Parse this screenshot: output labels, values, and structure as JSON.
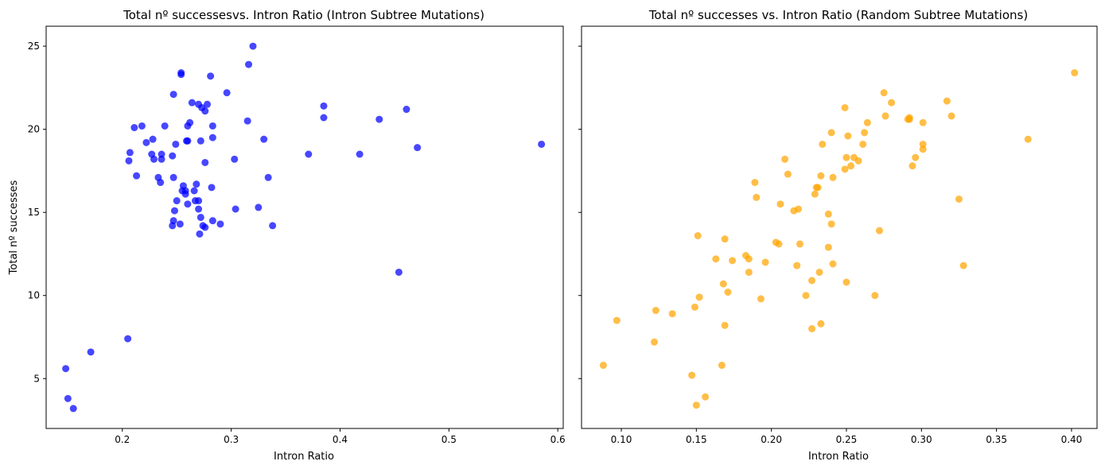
{
  "chart_data": [
    {
      "type": "scatter",
      "title": "Total nº successesvs. Intron Ratio (Intron Subtree Mutations)",
      "xlabel": "Intron Ratio",
      "ylabel": "Total nº successes",
      "xlim": [
        0.13,
        0.605
      ],
      "ylim": [
        2.0,
        26.2
      ],
      "xticks": [
        0.2,
        0.3,
        0.4,
        0.5,
        0.6
      ],
      "xtick_labels": [
        "0.2",
        "0.3",
        "0.4",
        "0.5",
        "0.6"
      ],
      "yticks": [
        5,
        10,
        15,
        20,
        25
      ],
      "ytick_labels": [
        "5",
        "10",
        "15",
        "20",
        "25"
      ],
      "grid": false,
      "color": "#0000ff",
      "points": [
        [
          0.148,
          5.6
        ],
        [
          0.15,
          3.8
        ],
        [
          0.155,
          3.2
        ],
        [
          0.171,
          6.6
        ],
        [
          0.205,
          7.4
        ],
        [
          0.206,
          18.1
        ],
        [
          0.207,
          18.6
        ],
        [
          0.211,
          20.1
        ],
        [
          0.213,
          17.2
        ],
        [
          0.218,
          20.2
        ],
        [
          0.222,
          19.2
        ],
        [
          0.227,
          18.5
        ],
        [
          0.228,
          19.4
        ],
        [
          0.229,
          18.2
        ],
        [
          0.233,
          17.1
        ],
        [
          0.235,
          16.8
        ],
        [
          0.236,
          18.2
        ],
        [
          0.236,
          18.5
        ],
        [
          0.239,
          20.2
        ],
        [
          0.246,
          14.2
        ],
        [
          0.246,
          18.4
        ],
        [
          0.247,
          22.1
        ],
        [
          0.247,
          17.1
        ],
        [
          0.247,
          14.5
        ],
        [
          0.248,
          15.1
        ],
        [
          0.249,
          19.1
        ],
        [
          0.25,
          15.7
        ],
        [
          0.253,
          14.3
        ],
        [
          0.254,
          23.3
        ],
        [
          0.254,
          23.4
        ],
        [
          0.255,
          16.3
        ],
        [
          0.256,
          16.6
        ],
        [
          0.258,
          16.3
        ],
        [
          0.258,
          16.1
        ],
        [
          0.259,
          19.3
        ],
        [
          0.26,
          19.3
        ],
        [
          0.26,
          15.5
        ],
        [
          0.26,
          20.2
        ],
        [
          0.262,
          20.4
        ],
        [
          0.264,
          21.6
        ],
        [
          0.266,
          16.3
        ],
        [
          0.267,
          15.7
        ],
        [
          0.268,
          16.7
        ],
        [
          0.27,
          15.7
        ],
        [
          0.27,
          15.2
        ],
        [
          0.27,
          21.5
        ],
        [
          0.271,
          13.7
        ],
        [
          0.272,
          14.7
        ],
        [
          0.272,
          19.3
        ],
        [
          0.273,
          21.3
        ],
        [
          0.274,
          14.2
        ],
        [
          0.276,
          14.1
        ],
        [
          0.276,
          21.1
        ],
        [
          0.276,
          18.0
        ],
        [
          0.278,
          21.5
        ],
        [
          0.281,
          23.2
        ],
        [
          0.282,
          16.5
        ],
        [
          0.283,
          14.5
        ],
        [
          0.283,
          20.2
        ],
        [
          0.283,
          19.5
        ],
        [
          0.29,
          14.3
        ],
        [
          0.296,
          22.2
        ],
        [
          0.303,
          18.2
        ],
        [
          0.304,
          15.2
        ],
        [
          0.315,
          20.5
        ],
        [
          0.316,
          23.9
        ],
        [
          0.32,
          25.0
        ],
        [
          0.325,
          15.3
        ],
        [
          0.33,
          19.4
        ],
        [
          0.334,
          17.1
        ],
        [
          0.338,
          14.2
        ],
        [
          0.371,
          18.5
        ],
        [
          0.385,
          21.4
        ],
        [
          0.385,
          20.7
        ],
        [
          0.418,
          18.5
        ],
        [
          0.436,
          20.6
        ],
        [
          0.454,
          11.4
        ],
        [
          0.461,
          21.2
        ],
        [
          0.471,
          18.9
        ],
        [
          0.585,
          19.1
        ]
      ]
    },
    {
      "type": "scatter",
      "title": "Total nº successes vs. Intron Ratio (Random Subtree Mutations)",
      "xlabel": "Intron Ratio",
      "ylabel": "",
      "xlim": [
        0.0735,
        0.417
      ],
      "ylim": [
        2.0,
        26.2
      ],
      "xticks": [
        0.1,
        0.15,
        0.2,
        0.25,
        0.3,
        0.35,
        0.4
      ],
      "xtick_labels": [
        "0.10",
        "0.15",
        "0.20",
        "0.25",
        "0.30",
        "0.35",
        "0.40"
      ],
      "yticks": [
        5,
        10,
        15,
        20,
        25
      ],
      "ytick_labels": [
        "",
        "",
        "",
        "",
        ""
      ],
      "grid": false,
      "color": "#ffa500",
      "points": [
        [
          0.088,
          5.8
        ],
        [
          0.097,
          8.5
        ],
        [
          0.122,
          7.2
        ],
        [
          0.123,
          9.1
        ],
        [
          0.134,
          8.9
        ],
        [
          0.147,
          5.2
        ],
        [
          0.149,
          9.3
        ],
        [
          0.15,
          3.4
        ],
        [
          0.151,
          13.6
        ],
        [
          0.152,
          9.9
        ],
        [
          0.156,
          3.9
        ],
        [
          0.163,
          12.2
        ],
        [
          0.167,
          5.8
        ],
        [
          0.168,
          10.7
        ],
        [
          0.169,
          13.4
        ],
        [
          0.169,
          8.2
        ],
        [
          0.171,
          10.2
        ],
        [
          0.174,
          12.1
        ],
        [
          0.183,
          12.4
        ],
        [
          0.185,
          12.2
        ],
        [
          0.185,
          11.4
        ],
        [
          0.189,
          16.8
        ],
        [
          0.19,
          15.9
        ],
        [
          0.193,
          9.8
        ],
        [
          0.196,
          12.0
        ],
        [
          0.203,
          13.2
        ],
        [
          0.205,
          13.1
        ],
        [
          0.206,
          15.5
        ],
        [
          0.209,
          18.2
        ],
        [
          0.211,
          17.3
        ],
        [
          0.215,
          15.1
        ],
        [
          0.217,
          11.8
        ],
        [
          0.218,
          15.2
        ],
        [
          0.219,
          13.1
        ],
        [
          0.223,
          10.0
        ],
        [
          0.227,
          10.9
        ],
        [
          0.227,
          8.0
        ],
        [
          0.229,
          16.1
        ],
        [
          0.23,
          16.5
        ],
        [
          0.231,
          16.5
        ],
        [
          0.232,
          11.4
        ],
        [
          0.233,
          17.2
        ],
        [
          0.233,
          8.3
        ],
        [
          0.234,
          19.1
        ],
        [
          0.238,
          14.9
        ],
        [
          0.238,
          12.9
        ],
        [
          0.24,
          19.8
        ],
        [
          0.24,
          14.3
        ],
        [
          0.241,
          17.1
        ],
        [
          0.241,
          11.9
        ],
        [
          0.249,
          21.3
        ],
        [
          0.249,
          17.6
        ],
        [
          0.25,
          18.3
        ],
        [
          0.25,
          10.8
        ],
        [
          0.251,
          19.6
        ],
        [
          0.253,
          17.8
        ],
        [
          0.255,
          18.3
        ],
        [
          0.258,
          18.1
        ],
        [
          0.261,
          19.1
        ],
        [
          0.262,
          19.8
        ],
        [
          0.264,
          20.4
        ],
        [
          0.269,
          10.0
        ],
        [
          0.272,
          13.9
        ],
        [
          0.275,
          22.2
        ],
        [
          0.276,
          20.8
        ],
        [
          0.28,
          21.6
        ],
        [
          0.291,
          20.6
        ],
        [
          0.292,
          20.6
        ],
        [
          0.292,
          20.7
        ],
        [
          0.294,
          17.8
        ],
        [
          0.296,
          18.3
        ],
        [
          0.301,
          18.8
        ],
        [
          0.301,
          19.1
        ],
        [
          0.301,
          20.4
        ],
        [
          0.317,
          21.7
        ],
        [
          0.32,
          20.8
        ],
        [
          0.325,
          15.8
        ],
        [
          0.328,
          11.8
        ],
        [
          0.371,
          19.4
        ],
        [
          0.402,
          23.4
        ]
      ]
    }
  ]
}
